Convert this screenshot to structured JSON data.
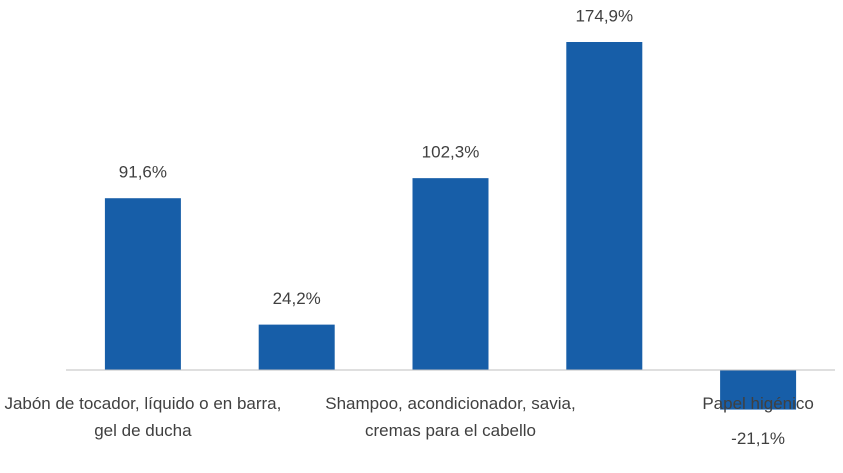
{
  "chart_data": {
    "type": "bar",
    "categories": [
      "Jabón de tocador, líquido o en barra, gel de ducha",
      null,
      "Shampoo, acondicionador, savia, cremas para el cabello",
      null,
      "Papel higénico"
    ],
    "values": [
      91.6,
      24.2,
      102.3,
      174.9,
      -21.1
    ],
    "value_labels": [
      "91,6%",
      "24,2%",
      "102,3%",
      "174,9%",
      "-21,1%"
    ],
    "color": "#175ea8"
  }
}
